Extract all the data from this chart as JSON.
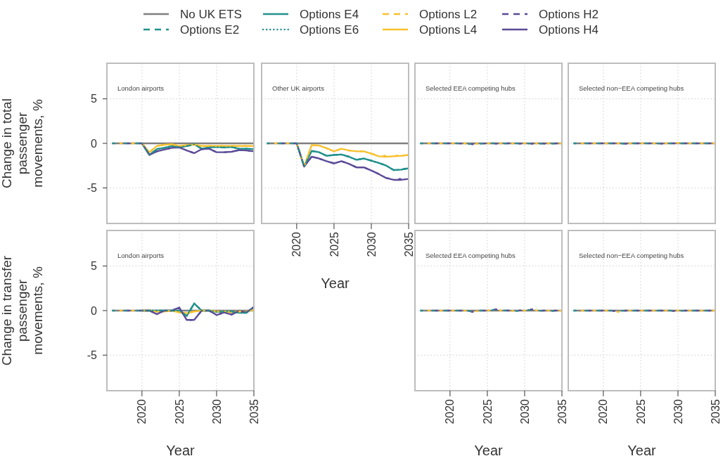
{
  "chart_data": [
    {
      "type": "line",
      "title": "London airports",
      "ylabel": "Change in total passenger movements, %",
      "legend": "top",
      "grid": true,
      "tick_labels": "y",
      "x": [
        2016,
        2017,
        2018,
        2019,
        2020,
        2021,
        2022,
        2023,
        2024,
        2025,
        2026,
        2027,
        2028,
        2029,
        2030,
        2031,
        2032,
        2033,
        2034,
        2035
      ],
      "xlim": [
        2015.3,
        2035
      ],
      "xticks": [
        2020,
        2025,
        2030,
        2035
      ],
      "ylim": [
        -9,
        9
      ],
      "yticks": [
        -5,
        0,
        5
      ],
      "series": [
        {
          "name": "No UK ETS",
          "color": "#7f7f7f",
          "line_style": "solid",
          "values": [
            0,
            0,
            0,
            0,
            0,
            0,
            0,
            0,
            0,
            0,
            0,
            0,
            0,
            0,
            0,
            0,
            0,
            0,
            0,
            0
          ]
        },
        {
          "name": "Options E2",
          "color": "#21908c",
          "line_style": "dashed",
          "values": [
            0,
            0,
            0,
            0,
            0,
            -1.3,
            -0.65,
            -0.5,
            -0.3,
            -0.45,
            -0.3,
            -0.1,
            -0.6,
            -0.45,
            -0.4,
            -0.45,
            -0.4,
            -0.6,
            -0.6,
            -0.65
          ]
        },
        {
          "name": "Options E4",
          "color": "#21908c",
          "line_style": "solid",
          "values": [
            null,
            null,
            null,
            null,
            0,
            -1.3,
            -0.65,
            -0.5,
            -0.3,
            -0.45,
            -0.3,
            -0.1,
            -0.6,
            -0.45,
            -0.4,
            -0.45,
            -0.4,
            -0.6,
            -0.6,
            -0.65
          ]
        },
        {
          "name": "Options E6",
          "color": "#21908c",
          "line_style": "dotted",
          "values": [
            null,
            null,
            null,
            null,
            0,
            -1.3,
            -0.65,
            -0.5,
            -0.3,
            -0.45,
            -0.3,
            -0.1,
            -0.6,
            -0.45,
            -0.4,
            -0.45,
            -0.4,
            -0.6,
            -0.6,
            -0.65
          ]
        },
        {
          "name": "Options L2",
          "color": "#f8c02c",
          "line_style": "dashed",
          "values": [
            null,
            0,
            0,
            0,
            0,
            -1.0,
            -0.3,
            -0.15,
            -0.1,
            -0.3,
            -0.2,
            -0.15,
            -0.3,
            -0.3,
            -0.3,
            -0.3,
            -0.3,
            -0.3,
            -0.3,
            -0.3
          ]
        },
        {
          "name": "Options L4",
          "color": "#f8c02c",
          "line_style": "solid",
          "values": [
            null,
            null,
            null,
            null,
            0,
            -1.0,
            -0.3,
            -0.15,
            -0.1,
            -0.3,
            -0.2,
            -0.15,
            -0.3,
            -0.3,
            -0.3,
            -0.3,
            -0.3,
            -0.3,
            -0.3,
            -0.3
          ]
        },
        {
          "name": "Options H2",
          "color": "#5b4a97",
          "line_style": "dashed",
          "values": [
            null,
            null,
            0,
            0,
            0,
            -1.3,
            -0.9,
            -0.7,
            -0.5,
            -0.45,
            -0.8,
            -1.1,
            -0.65,
            -0.6,
            -1.0,
            -1.0,
            -0.95,
            -0.75,
            -0.8,
            -0.9
          ]
        },
        {
          "name": "Options H4",
          "color": "#5b4a97",
          "line_style": "solid",
          "values": [
            null,
            null,
            null,
            null,
            0,
            -1.3,
            -0.9,
            -0.7,
            -0.5,
            -0.45,
            -0.8,
            -1.1,
            -0.65,
            -0.6,
            -1.0,
            -1.0,
            -0.95,
            -0.75,
            -0.8,
            -0.9
          ]
        }
      ]
    },
    {
      "type": "line",
      "title": "Other UK airports",
      "xlabel": "Year",
      "grid": true,
      "tick_labels": "x",
      "x": [
        2016,
        2017,
        2018,
        2019,
        2020,
        2021,
        2022,
        2023,
        2024,
        2025,
        2026,
        2027,
        2028,
        2029,
        2030,
        2031,
        2032,
        2033,
        2034,
        2035
      ],
      "xlim": [
        2015.3,
        2035
      ],
      "xticks": [
        2020,
        2025,
        2030,
        2035
      ],
      "ylim": [
        -9,
        9
      ],
      "yticks": [
        -5,
        0,
        5
      ],
      "series": [
        {
          "color": "#7f7f7f",
          "line_style": "solid",
          "values": [
            0,
            0,
            0,
            0,
            0,
            0,
            0,
            0,
            0,
            0,
            0,
            0,
            0,
            0,
            0,
            0,
            0,
            0,
            0,
            0
          ]
        },
        {
          "color": "#21908c",
          "line_style": "dashed",
          "values": [
            0,
            0,
            0,
            0,
            0,
            -2.6,
            -0.85,
            -1.0,
            -1.4,
            -1.3,
            -1.25,
            -1.5,
            -1.85,
            -1.7,
            -1.95,
            -2.2,
            -2.5,
            -3.0,
            -2.9,
            -2.8
          ]
        },
        {
          "color": "#21908c",
          "line_style": "solid",
          "values": [
            null,
            null,
            null,
            null,
            0,
            -2.6,
            -0.85,
            -1.0,
            -1.4,
            -1.3,
            -1.25,
            -1.5,
            -1.85,
            -1.7,
            -1.95,
            -2.2,
            -2.5,
            -3.0,
            -2.95,
            -2.8
          ]
        },
        {
          "color": "#21908c",
          "line_style": "dotted",
          "values": [
            null,
            null,
            null,
            null,
            0,
            -2.6,
            -0.85,
            -1.0,
            -1.4,
            -1.3,
            -1.25,
            -1.5,
            -1.85,
            -1.7,
            -1.95,
            -2.2,
            -2.5,
            -3.0,
            -2.95,
            -2.8
          ]
        },
        {
          "color": "#f8c02c",
          "line_style": "dashed",
          "values": [
            null,
            0,
            0,
            0,
            0,
            -2.6,
            -0.2,
            -0.25,
            -0.55,
            -0.9,
            -0.6,
            -0.8,
            -0.9,
            -0.9,
            -1.15,
            -1.4,
            -1.4,
            -1.4,
            -1.35,
            -1.3
          ]
        },
        {
          "color": "#f8c02c",
          "line_style": "solid",
          "values": [
            null,
            null,
            null,
            null,
            0,
            -2.6,
            -0.2,
            -0.25,
            -0.55,
            -0.9,
            -0.6,
            -0.8,
            -0.9,
            -0.9,
            -1.15,
            -1.45,
            -1.5,
            -1.45,
            -1.4,
            -1.3
          ]
        },
        {
          "color": "#5b4a97",
          "line_style": "dashed",
          "values": [
            null,
            null,
            0,
            0,
            0,
            -2.6,
            -1.5,
            -1.7,
            -2.0,
            -2.25,
            -2.0,
            -2.3,
            -2.7,
            -2.7,
            -3.05,
            -3.45,
            -3.9,
            -4.0,
            -4.0,
            -4.0
          ]
        },
        {
          "color": "#5b4a97",
          "line_style": "solid",
          "values": [
            null,
            null,
            null,
            null,
            0,
            -2.6,
            -1.5,
            -1.7,
            -2.0,
            -2.25,
            -2.0,
            -2.3,
            -2.7,
            -2.7,
            -3.05,
            -3.45,
            -3.9,
            -4.1,
            -4.1,
            -4.0
          ]
        }
      ]
    },
    {
      "type": "line",
      "title": "Selected EEA competing hubs",
      "grid": true,
      "tick_labels": false,
      "x": [
        2016,
        2017,
        2018,
        2019,
        2020,
        2021,
        2022,
        2023,
        2024,
        2025,
        2026,
        2027,
        2028,
        2029,
        2030,
        2031,
        2032,
        2033,
        2034,
        2035
      ],
      "xlim": [
        2015.3,
        2035
      ],
      "xticks": [
        2020,
        2025,
        2030,
        2035
      ],
      "ylim": [
        -9,
        9
      ],
      "yticks": [
        -5,
        0,
        5
      ],
      "series": [
        {
          "color": "#7f7f7f",
          "line_style": "solid",
          "values": [
            0,
            0,
            0,
            0,
            0,
            0,
            0,
            0,
            0,
            0,
            0,
            0,
            0,
            0,
            0,
            0,
            0,
            0,
            0,
            0
          ]
        },
        {
          "color": "#21908c",
          "line_style": "dashed",
          "values": [
            0,
            0,
            0,
            0,
            0,
            0,
            -0.05,
            -0.1,
            -0.05,
            0,
            0,
            0,
            -0.05,
            0,
            -0.05,
            0,
            -0.05,
            0,
            -0.05,
            -0.05
          ]
        },
        {
          "color": "#f8c02c",
          "line_style": "dashed",
          "values": [
            null,
            0,
            0,
            0,
            0,
            0,
            0,
            -0.1,
            0,
            0,
            0,
            0,
            0,
            0,
            0,
            0,
            0,
            0,
            0,
            0
          ]
        },
        {
          "color": "#5b4a97",
          "line_style": "dashed",
          "values": [
            null,
            null,
            0,
            0,
            0,
            0,
            -0.05,
            -0.1,
            -0.05,
            0,
            -0.05,
            0,
            0,
            -0.05,
            0,
            -0.05,
            0,
            -0.05,
            0,
            -0.05
          ]
        }
      ]
    },
    {
      "type": "line",
      "title": "Selected non−EEA competing hubs",
      "grid": true,
      "tick_labels": false,
      "x": [
        2016,
        2017,
        2018,
        2019,
        2020,
        2021,
        2022,
        2023,
        2024,
        2025,
        2026,
        2027,
        2028,
        2029,
        2030,
        2031,
        2032,
        2033,
        2034,
        2035
      ],
      "xlim": [
        2015.3,
        2035
      ],
      "xticks": [
        2020,
        2025,
        2030,
        2035
      ],
      "ylim": [
        -9,
        9
      ],
      "yticks": [
        -5,
        0,
        5
      ],
      "series": [
        {
          "color": "#7f7f7f",
          "line_style": "solid",
          "values": [
            0,
            0,
            0,
            0,
            0,
            0,
            0,
            0,
            0,
            0,
            0,
            0,
            0,
            0,
            0,
            0,
            0,
            0,
            0,
            0
          ]
        },
        {
          "color": "#21908c",
          "line_style": "dashed",
          "values": [
            0,
            0,
            0,
            0,
            0,
            0,
            0,
            -0.05,
            0,
            0,
            0,
            0,
            -0.05,
            0,
            0,
            0,
            0,
            0,
            0,
            -0.05
          ]
        },
        {
          "color": "#f8c02c",
          "line_style": "dashed",
          "values": [
            null,
            0,
            0,
            0,
            0,
            0,
            0,
            0,
            0,
            0,
            0,
            0,
            0,
            0,
            0.05,
            0,
            0,
            0,
            0,
            0
          ]
        },
        {
          "color": "#5b4a97",
          "line_style": "dashed",
          "values": [
            null,
            null,
            0,
            0,
            0,
            0,
            0,
            -0.05,
            0,
            0,
            0,
            0,
            -0.05,
            0,
            0,
            0,
            0,
            0,
            0,
            0
          ]
        }
      ]
    },
    {
      "type": "line",
      "title": "London airports",
      "xlabel": "Year",
      "ylabel": "Change in transfer passenger movements, %",
      "grid": true,
      "x": [
        2016,
        2017,
        2018,
        2019,
        2020,
        2021,
        2022,
        2023,
        2024,
        2025,
        2026,
        2027,
        2028,
        2029,
        2030,
        2031,
        2032,
        2033,
        2034,
        2035
      ],
      "xlim": [
        2015.3,
        2035
      ],
      "xticks": [
        2020,
        2025,
        2030,
        2035
      ],
      "ylim": [
        -9,
        9
      ],
      "yticks": [
        -5,
        0,
        5
      ],
      "series": [
        {
          "color": "#7f7f7f",
          "line_style": "solid",
          "values": [
            0,
            0,
            0,
            0,
            0,
            0,
            0,
            0,
            0,
            0,
            0,
            0,
            0,
            0,
            0,
            0,
            0,
            0,
            0,
            0
          ]
        },
        {
          "color": "#21908c",
          "line_style": "dashed",
          "values": [
            0,
            0,
            0,
            0,
            0,
            0,
            0,
            0,
            0,
            0,
            -0.6,
            0.8,
            0,
            0,
            -0.15,
            -0.1,
            -0.1,
            -0.25,
            -0.25,
            0.4
          ]
        },
        {
          "color": "#21908c",
          "line_style": "solid",
          "values": [
            null,
            null,
            null,
            null,
            0,
            0,
            0,
            0,
            0,
            0,
            -0.6,
            0.8,
            0,
            0,
            -0.15,
            -0.1,
            -0.1,
            -0.25,
            -0.25,
            0.4
          ]
        },
        {
          "color": "#21908c",
          "line_style": "dotted",
          "values": [
            null,
            null,
            null,
            null,
            0,
            0,
            0,
            0,
            0,
            0,
            -0.6,
            0.8,
            0,
            0,
            -0.15,
            -0.1,
            -0.1,
            -0.25,
            -0.25,
            0.4
          ]
        },
        {
          "color": "#f8c02c",
          "line_style": "dashed",
          "values": [
            null,
            0,
            0,
            0,
            0,
            0,
            -0.1,
            -0.1,
            0,
            -0.2,
            -0.3,
            -0.1,
            0,
            0,
            -0.1,
            -0.1,
            -0.2,
            -0.1,
            -0.1,
            0.1
          ]
        },
        {
          "color": "#f8c02c",
          "line_style": "solid",
          "values": [
            null,
            null,
            null,
            null,
            0,
            0,
            -0.1,
            -0.1,
            0,
            -0.2,
            -0.3,
            -0.1,
            0,
            0,
            -0.1,
            -0.1,
            -0.2,
            -0.1,
            -0.1,
            0.1
          ]
        },
        {
          "color": "#5b4a97",
          "line_style": "dashed",
          "values": [
            null,
            null,
            0,
            0,
            0,
            0,
            -0.4,
            0,
            0,
            0.35,
            -1.05,
            -1.05,
            0,
            0,
            -0.5,
            -0.2,
            -0.45,
            -0.05,
            -0.2,
            0.4
          ]
        },
        {
          "color": "#5b4a97",
          "line_style": "solid",
          "values": [
            null,
            null,
            null,
            null,
            0,
            0,
            -0.4,
            0,
            0,
            0.35,
            -1.05,
            -1.05,
            0,
            0,
            -0.5,
            -0.2,
            -0.45,
            -0.05,
            -0.2,
            0.4
          ]
        }
      ]
    },
    {
      "type": "line",
      "title": "Selected EEA competing hubs",
      "xlabel": "Year",
      "grid": true,
      "tick_labels": "x",
      "x": [
        2016,
        2017,
        2018,
        2019,
        2020,
        2021,
        2022,
        2023,
        2024,
        2025,
        2026,
        2027,
        2028,
        2029,
        2030,
        2031,
        2032,
        2033,
        2034,
        2035
      ],
      "xlim": [
        2015.3,
        2035
      ],
      "xticks": [
        2020,
        2025,
        2030,
        2035
      ],
      "ylim": [
        -9,
        9
      ],
      "yticks": [
        -5,
        0,
        5
      ],
      "series": [
        {
          "color": "#7f7f7f",
          "line_style": "solid",
          "values": [
            0,
            0,
            0,
            0,
            0,
            0,
            0,
            0,
            0,
            0,
            0,
            0,
            0,
            0,
            0,
            0,
            0,
            0,
            0,
            0
          ]
        },
        {
          "color": "#21908c",
          "line_style": "dashed",
          "values": [
            0,
            0,
            0,
            0,
            0,
            0,
            0,
            -0.1,
            0,
            0,
            0.1,
            0.05,
            -0.05,
            -0.05,
            0.05,
            0.1,
            0,
            -0.05,
            -0.05,
            -0.05
          ]
        },
        {
          "color": "#f8c02c",
          "line_style": "dashed",
          "values": [
            null,
            0,
            0,
            0,
            0,
            0,
            0,
            -0.15,
            0,
            0,
            0.05,
            0,
            -0.05,
            0,
            0,
            0.05,
            0,
            0,
            0,
            0
          ]
        },
        {
          "color": "#5b4a97",
          "line_style": "dashed",
          "values": [
            null,
            null,
            0,
            0,
            0,
            0,
            0,
            -0.15,
            0,
            0,
            0.15,
            0.05,
            0,
            0,
            0.05,
            0.15,
            0,
            0,
            0,
            0
          ]
        }
      ]
    },
    {
      "type": "line",
      "title": "Selected non−EEA competing hubs",
      "xlabel": "Year",
      "grid": true,
      "tick_labels": "x",
      "x": [
        2016,
        2017,
        2018,
        2019,
        2020,
        2021,
        2022,
        2023,
        2024,
        2025,
        2026,
        2027,
        2028,
        2029,
        2030,
        2031,
        2032,
        2033,
        2034,
        2035
      ],
      "xlim": [
        2015.3,
        2035
      ],
      "xticks": [
        2020,
        2025,
        2030,
        2035
      ],
      "ylim": [
        -9,
        9
      ],
      "yticks": [
        -5,
        0,
        5
      ],
      "series": [
        {
          "color": "#7f7f7f",
          "line_style": "solid",
          "values": [
            0,
            0,
            0,
            0,
            0,
            0,
            0,
            0,
            0,
            0,
            0,
            0,
            0,
            0,
            0,
            0,
            0,
            0,
            0,
            0
          ]
        },
        {
          "color": "#21908c",
          "line_style": "dashed",
          "values": [
            0,
            0,
            0,
            0,
            0,
            0,
            -0.05,
            0,
            0,
            0,
            0,
            0,
            0,
            0,
            -0.05,
            0,
            0,
            0,
            0,
            -0.05
          ]
        },
        {
          "color": "#f8c02c",
          "line_style": "dashed",
          "values": [
            null,
            0,
            0,
            0,
            0,
            0,
            -0.15,
            0,
            0,
            0,
            0,
            0,
            0,
            0,
            0,
            0,
            0,
            0,
            0,
            0
          ]
        },
        {
          "color": "#5b4a97",
          "line_style": "dashed",
          "values": [
            null,
            null,
            0,
            0,
            0,
            0,
            -0.1,
            0,
            0,
            0,
            0,
            0,
            0,
            -0.05,
            -0.05,
            0,
            0,
            0,
            0,
            0
          ]
        }
      ]
    }
  ]
}
